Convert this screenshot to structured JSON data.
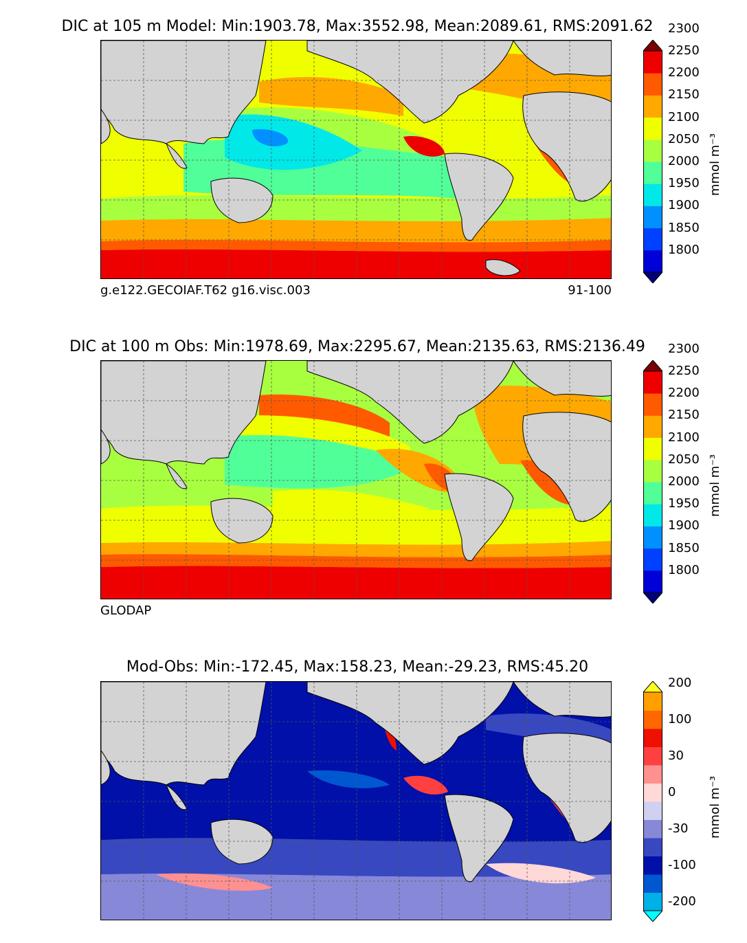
{
  "chart_data": [
    {
      "type": "heatmap",
      "title": "DIC at 105 m Model: Min:1903.78, Max:3552.98, Mean:2089.61, RMS:2091.62",
      "caption_left": "g.e122.GECOIAF.T62 g16.visc.003",
      "caption_right": "91-100",
      "colorbar": {
        "unit": "mmol m⁻³",
        "ticks": [
          1800,
          1850,
          1900,
          1950,
          2000,
          2050,
          2100,
          2150,
          2200,
          2250,
          2300
        ],
        "tick_labels": [
          "1800",
          "1850",
          "1900",
          "1950",
          "2000",
          "2050",
          "2100",
          "2150",
          "2200",
          "2250",
          "2300"
        ],
        "colors": [
          "#00007a",
          "#0000d8",
          "#0040ff",
          "#0090ff",
          "#00e8e8",
          "#50ff98",
          "#a8ff40",
          "#f0ff00",
          "#ffa800",
          "#ff5a00",
          "#ee0000",
          "#780000"
        ]
      },
      "grid": true
    },
    {
      "type": "heatmap",
      "title": "DIC at 100 m Obs: Min:1978.69, Max:2295.67, Mean:2135.63, RMS:2136.49",
      "caption_left": "GLODAP",
      "caption_right": "",
      "colorbar": {
        "unit": "mmol m⁻³",
        "ticks": [
          1800,
          1850,
          1900,
          1950,
          2000,
          2050,
          2100,
          2150,
          2200,
          2250,
          2300
        ],
        "tick_labels": [
          "1800",
          "1850",
          "1900",
          "1950",
          "2000",
          "2050",
          "2100",
          "2150",
          "2200",
          "2250",
          "2300"
        ],
        "colors": [
          "#00007a",
          "#0000d8",
          "#0040ff",
          "#0090ff",
          "#00e8e8",
          "#50ff98",
          "#a8ff40",
          "#f0ff00",
          "#ffa800",
          "#ff5a00",
          "#ee0000",
          "#780000"
        ]
      },
      "grid": true
    },
    {
      "type": "heatmap",
      "title": "Mod-Obs: Min:-172.45, Max:158.23, Mean:-29.23, RMS:45.20",
      "caption_left": "",
      "caption_right": "",
      "colorbar": {
        "unit": "mmol m⁻³",
        "ticks": [
          -200,
          -100,
          -30,
          0,
          30,
          100,
          200
        ],
        "tick_labels": [
          "-200",
          "-100",
          "-30",
          "0",
          "30",
          "100",
          "200"
        ],
        "colors": [
          "#00ffff",
          "#00b0e8",
          "#0058d0",
          "#0010a8",
          "#3848c0",
          "#8888d8",
          "#d0d0f0",
          "#ffd8d8",
          "#ff9090",
          "#ff4040",
          "#ee1000",
          "#ff6800",
          "#ffa000",
          "#ffff20"
        ]
      },
      "grid": true
    }
  ]
}
